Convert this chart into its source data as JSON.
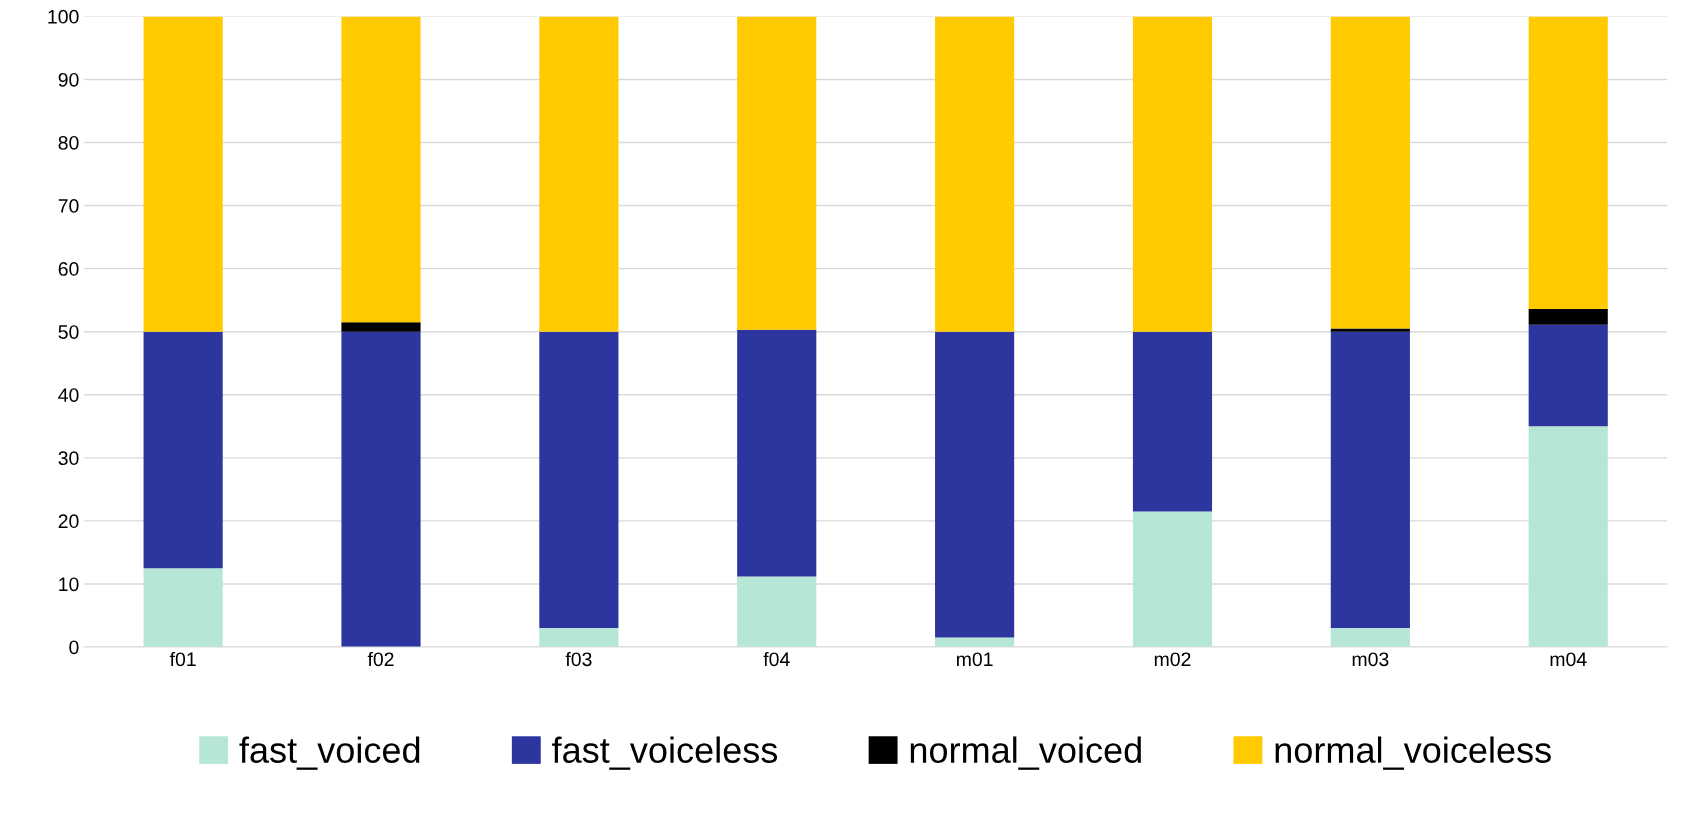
{
  "chart_data": {
    "type": "bar",
    "stacked": true,
    "categories": [
      "f01",
      "f02",
      "f03",
      "f04",
      "m01",
      "m02",
      "m03",
      "m04"
    ],
    "series": [
      {
        "name": "fast_voiced",
        "color": "#b5e6d6",
        "values": [
          12.5,
          0,
          3,
          11.2,
          1.5,
          21.5,
          3,
          35
        ]
      },
      {
        "name": "fast_voiceless",
        "color": "#2c369e",
        "values": [
          37.5,
          50,
          47,
          39.1,
          48.5,
          28.5,
          47,
          16.1
        ]
      },
      {
        "name": "normal_voiced",
        "color": "#000000",
        "values": [
          0,
          1.5,
          0,
          0,
          0,
          0,
          0.5,
          2.5
        ]
      },
      {
        "name": "normal_voiceless",
        "color": "#ffcb00",
        "values": [
          50,
          48.5,
          50,
          49.7,
          50,
          50,
          49.5,
          46.4
        ]
      }
    ],
    "ylim": [
      0,
      100
    ],
    "yticks": [
      0,
      10,
      20,
      30,
      40,
      50,
      60,
      70,
      80,
      90,
      100
    ],
    "grid": "y",
    "legend": "bottom"
  }
}
